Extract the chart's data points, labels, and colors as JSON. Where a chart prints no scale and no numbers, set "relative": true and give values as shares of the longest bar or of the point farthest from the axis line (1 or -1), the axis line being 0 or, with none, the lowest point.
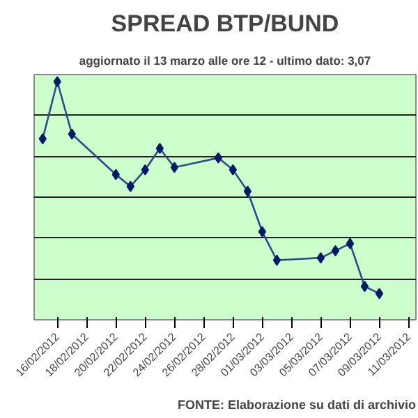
{
  "chart_data": {
    "type": "line",
    "title": "SPREAD BTP/BUND",
    "subtitle": "aggiornato il 13 marzo alle ore 12 - ultimo dato: 3,07",
    "relative": true,
    "x": [
      "2012-02-15",
      "2012-02-16",
      "2012-02-17",
      "2012-02-20",
      "2012-02-21",
      "2012-02-22",
      "2012-02-23",
      "2012-02-24",
      "2012-02-27",
      "2012-02-28",
      "2012-02-29",
      "2012-03-01",
      "2012-03-02",
      "2012-03-05",
      "2012-03-06",
      "2012-03-07",
      "2012-03-08",
      "2012-03-09"
    ],
    "series": [
      {
        "color": "#2a4a8a",
        "values": [
          0.76,
          1,
          0.78,
          0.61,
          0.56,
          0.63,
          0.72,
          0.64,
          0.68,
          0.63,
          0.54,
          0.37,
          0.25,
          0.26,
          0.29,
          0.32,
          0.14,
          0.11
        ]
      }
    ],
    "xlim": [
      "2012-02-14T10:00",
      "2012-03-11T12:00"
    ],
    "xticks": [
      {
        "value": "2012-02-16",
        "label": "16/02/2012"
      },
      {
        "value": "2012-02-18",
        "label": "18/02/2012"
      },
      {
        "value": "2012-02-20",
        "label": "20/02/2012"
      },
      {
        "value": "2012-02-22",
        "label": "22/02/2012"
      },
      {
        "value": "2012-02-24",
        "label": "24/02/2012"
      },
      {
        "value": "2012-02-26",
        "label": "26/02/2012"
      },
      {
        "value": "2012-02-28",
        "label": "28/02/2012"
      },
      {
        "value": "2012-03-01",
        "label": "01/03/2012"
      },
      {
        "value": "2012-03-03",
        "label": "03/03/2012"
      },
      {
        "value": "2012-03-05",
        "label": "05/03/2012"
      },
      {
        "value": "2012-03-07",
        "label": "07/03/2012"
      },
      {
        "value": "2012-03-09",
        "label": "09/03/2012"
      },
      {
        "value": "2012-03-11",
        "label": "11/03/2012"
      }
    ],
    "grid": "y",
    "marker": "diamond",
    "line_style": "solid",
    "annotations": [
      "FONTE: Elaborazione su dati di archivio"
    ]
  }
}
